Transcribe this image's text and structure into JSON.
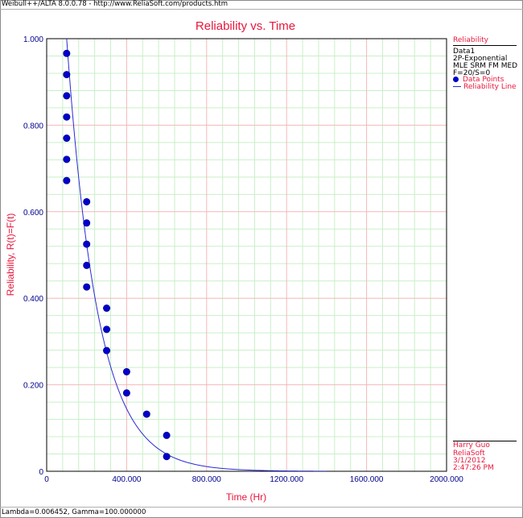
{
  "header": {
    "text": "Weibull++/ALTA 8.0.0.78 - http://www.ReliaSoft.com/products.htm"
  },
  "footer": {
    "text": "Lambda=0.006452, Gamma=100.000000"
  },
  "colors": {
    "title": "#e8173c",
    "axis_label": "#e8173c",
    "tick": "#00008b",
    "major_grid": "#f4b8b8",
    "minor_grid": "#c8f0c8",
    "points": "#0000cc",
    "line": "#2a2ad6",
    "legend_text": "#e8173c"
  },
  "legend": {
    "title": "Reliability",
    "lines": [
      "Data1",
      "2P-Exponential",
      "MLE SRM FM MED",
      "F=20/S=0"
    ],
    "items": [
      {
        "label": "Data Points",
        "icon": "dot-icon"
      },
      {
        "label": "Reliability Line",
        "icon": "line-icon"
      }
    ]
  },
  "footer_info": {
    "lines": [
      "Harry Guo",
      "ReliaSoft",
      "3/1/2012",
      "2:47:26 PM"
    ]
  },
  "chart_data": {
    "type": "scatter",
    "title": "Reliability vs. Time",
    "xlabel": "Time (Hr)",
    "ylabel": "Reliability, R(t)=F(t)",
    "xlim": [
      0,
      2000
    ],
    "ylim": [
      0,
      1
    ],
    "grid": true,
    "legend_position": "right",
    "x_ticks": [
      "0",
      "400.000",
      "800.000",
      "1200.000",
      "1600.000",
      "2000.000"
    ],
    "y_ticks": [
      "0",
      "0.200",
      "0.400",
      "0.600",
      "0.800",
      "1.000"
    ],
    "series": [
      {
        "name": "Data Points",
        "kind": "points",
        "points": [
          [
            100,
            0.966
          ],
          [
            100,
            0.917
          ],
          [
            100,
            0.868
          ],
          [
            100,
            0.819
          ],
          [
            100,
            0.77
          ],
          [
            100,
            0.721
          ],
          [
            100,
            0.672
          ],
          [
            200,
            0.623
          ],
          [
            200,
            0.574
          ],
          [
            200,
            0.525
          ],
          [
            200,
            0.476
          ],
          [
            200,
            0.426
          ],
          [
            300,
            0.377
          ],
          [
            300,
            0.328
          ],
          [
            300,
            0.279
          ],
          [
            400,
            0.23
          ],
          [
            400,
            0.181
          ],
          [
            500,
            0.132
          ],
          [
            600,
            0.083
          ],
          [
            600,
            0.034
          ]
        ]
      },
      {
        "name": "Reliability Line",
        "kind": "line",
        "model": "2P-Exponential",
        "lambda": 0.006452,
        "gamma": 100.0
      }
    ]
  }
}
